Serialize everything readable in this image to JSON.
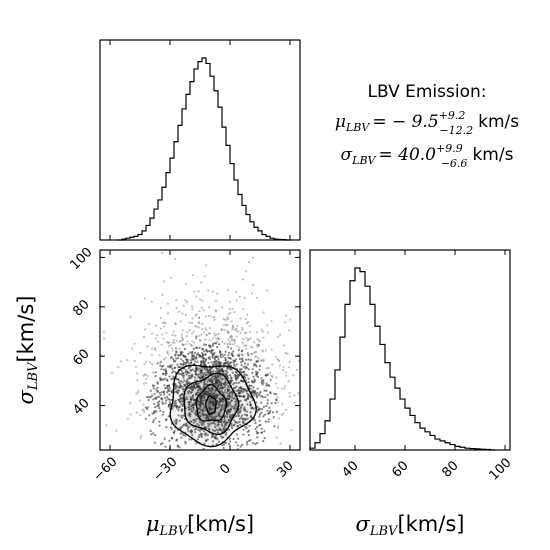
{
  "chart_data": [
    {
      "type": "histogram",
      "panel": "top-left",
      "variable": "mu_LBV",
      "xlim": [
        -65,
        35
      ],
      "x_ticks": [
        -60,
        -30,
        0,
        30
      ],
      "bins_x": [
        -55,
        -53,
        -51,
        -49,
        -47,
        -45,
        -43,
        -41,
        -39,
        -37,
        -35,
        -33,
        -31,
        -29,
        -27,
        -25,
        -23,
        -21,
        -19,
        -17,
        -15,
        -13,
        -11,
        -9,
        -7,
        -5,
        -3,
        -1,
        1,
        3,
        5,
        7,
        9,
        11,
        13,
        15,
        17,
        19,
        21,
        23,
        25,
        27,
        29
      ],
      "counts": [
        0,
        0.005,
        0.01,
        0.015,
        0.02,
        0.03,
        0.05,
        0.08,
        0.12,
        0.17,
        0.22,
        0.29,
        0.37,
        0.45,
        0.54,
        0.63,
        0.72,
        0.8,
        0.87,
        0.94,
        0.98,
        1.0,
        0.97,
        0.9,
        0.82,
        0.73,
        0.62,
        0.52,
        0.42,
        0.33,
        0.25,
        0.19,
        0.14,
        0.1,
        0.07,
        0.05,
        0.03,
        0.02,
        0.01,
        0.005,
        0.003,
        0.002,
        0.0
      ]
    },
    {
      "type": "scatter-contour",
      "panel": "bottom-left",
      "x_variable": "mu_LBV",
      "y_variable": "sigma_LBV",
      "xlim": [
        -65,
        35
      ],
      "ylim": [
        22,
        103
      ],
      "x_ticks": [
        -60,
        -30,
        0,
        30
      ],
      "y_ticks": [
        40,
        60,
        80,
        100
      ],
      "center": [
        -9.5,
        40.0
      ],
      "contour_levels": [
        {
          "level": 1,
          "rx": 2.5,
          "ry": 3.5
        },
        {
          "level": 2,
          "rx": 7.5,
          "ry": 7.0
        },
        {
          "level": 3,
          "rx": 13.5,
          "ry": 11.5
        },
        {
          "level": 4,
          "rx": 21.0,
          "ry": 16.0
        }
      ]
    },
    {
      "type": "histogram",
      "panel": "bottom-right",
      "variable": "sigma_LBV",
      "xlim": [
        22,
        102
      ],
      "x_ticks": [
        40,
        60,
        80,
        100
      ],
      "bins_x": [
        23,
        25,
        27,
        29,
        31,
        33,
        35,
        37,
        39,
        41,
        43,
        45,
        47,
        49,
        51,
        53,
        55,
        57,
        59,
        61,
        63,
        65,
        67,
        69,
        71,
        73,
        75,
        77,
        79,
        81,
        83,
        85,
        87,
        89,
        91,
        93,
        95
      ],
      "counts": [
        0.01,
        0.04,
        0.09,
        0.16,
        0.28,
        0.44,
        0.62,
        0.8,
        0.93,
        1.0,
        0.98,
        0.9,
        0.8,
        0.68,
        0.58,
        0.48,
        0.4,
        0.34,
        0.28,
        0.23,
        0.19,
        0.15,
        0.12,
        0.1,
        0.08,
        0.06,
        0.05,
        0.04,
        0.03,
        0.02,
        0.015,
        0.01,
        0.008,
        0.006,
        0.004,
        0.003,
        0.0
      ]
    }
  ],
  "labels": {
    "mu_xlabel_sym": "μ",
    "mu_xlabel_sub": "LBV",
    "mu_xlabel_unit": "[km/s]",
    "sigma_xlabel_sym": "σ",
    "sigma_xlabel_sub": "LBV",
    "sigma_xlabel_unit": "[km/s]",
    "sigma_ylabel_sym": "σ",
    "sigma_ylabel_sub": "LBV",
    "sigma_ylabel_unit": "[km/s]"
  },
  "summary": {
    "title": "LBV Emission:",
    "mu_lhs_sym": "μ",
    "mu_lhs_sub": "LBV",
    "mu_value": "= − 9.5",
    "mu_sup": "+9.2",
    "mu_subscript": "−12.2",
    "mu_unit": "km/s",
    "sigma_lhs_sym": "σ",
    "sigma_lhs_sub": "LBV",
    "sigma_value": "= 40.0",
    "sigma_sup": "+9.9",
    "sigma_subscript": "−6.6",
    "sigma_unit": "km/s"
  },
  "colors": {
    "line": "#000000",
    "points": "#333333",
    "contour_fills": [
      "#f2f2f2",
      "#d9d9d9",
      "#b5b5b5",
      "#8c8c8c"
    ]
  }
}
